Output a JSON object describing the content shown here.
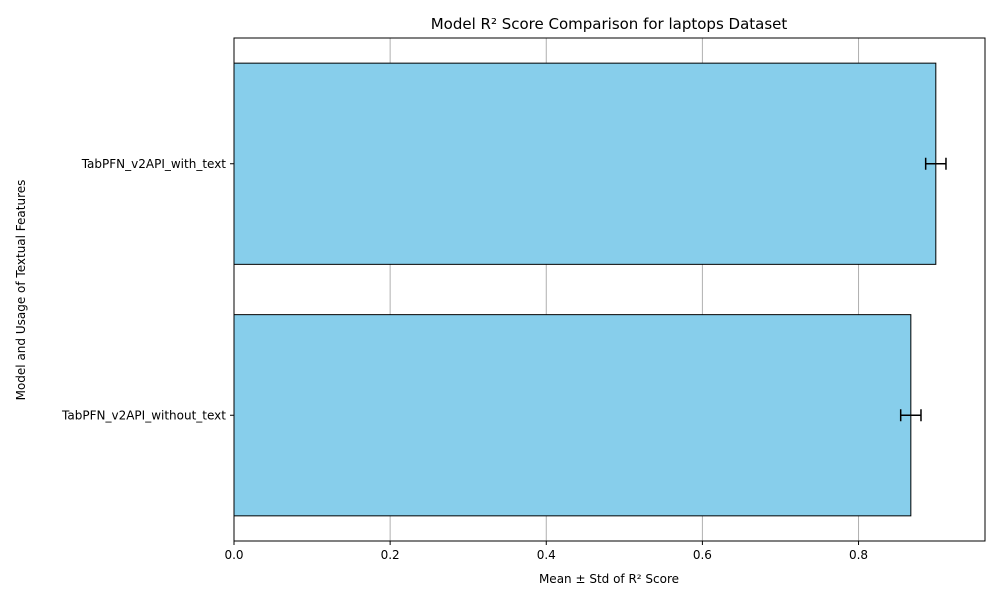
{
  "chart_data": {
    "type": "bar",
    "orientation": "horizontal",
    "title": "Model R² Score Comparison for laptops Dataset",
    "xlabel": "Mean ± Std of R² Score",
    "ylabel": "Model and Usage of Textual Features",
    "categories": [
      "TabPFN_v2API_with_text",
      "TabPFN_v2API_without_text"
    ],
    "values": [
      0.899,
      0.867
    ],
    "errors": [
      0.013,
      0.013
    ],
    "xlim": [
      0.0,
      0.962
    ],
    "xticks": [
      0.0,
      0.2,
      0.4,
      0.6,
      0.8
    ],
    "xtick_labels": [
      "0.0",
      "0.2",
      "0.4",
      "0.6",
      "0.8"
    ],
    "grid": "vertical",
    "bar_color": "#87ceeb",
    "edge_color": "#000000",
    "grid_color": "#b0b0b0"
  }
}
